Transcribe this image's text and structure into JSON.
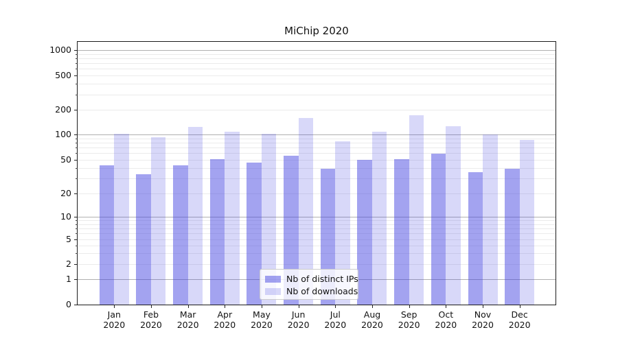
{
  "title": "MiChip 2020",
  "chart_data": {
    "type": "bar",
    "title": "MiChip 2020",
    "categories": [
      "Jan\n2020",
      "Feb\n2020",
      "Mar\n2020",
      "Apr\n2020",
      "May\n2020",
      "Jun\n2020",
      "Jul\n2020",
      "Aug\n2020",
      "Sep\n2020",
      "Oct\n2020",
      "Nov\n2020",
      "Dec\n2020"
    ],
    "series": [
      {
        "name": "Nb of distinct IPs",
        "color": "#3e3ee0",
        "opacity": 0.48,
        "values": [
          43,
          34,
          43,
          51,
          46,
          56,
          39,
          50,
          51,
          59,
          36,
          39
        ]
      },
      {
        "name": "Nb of downloads",
        "color": "#3e3ee0",
        "opacity": 0.2,
        "values": [
          101,
          92,
          124,
          109,
          101,
          160,
          83,
          107,
          171,
          125,
          100,
          86
        ]
      }
    ],
    "y_ticks": [
      0,
      1,
      2,
      5,
      10,
      20,
      50,
      100,
      200,
      500,
      1000
    ],
    "y_scale": "symlog",
    "ylim": [
      0,
      1300
    ],
    "xlabel": "",
    "ylabel": "",
    "grid": "on",
    "legend_position": "lower-center",
    "colors": {
      "grid_major": "#b0b0b0",
      "grid_minor": "#ebebeb",
      "spine": "#1a1a1a"
    }
  }
}
